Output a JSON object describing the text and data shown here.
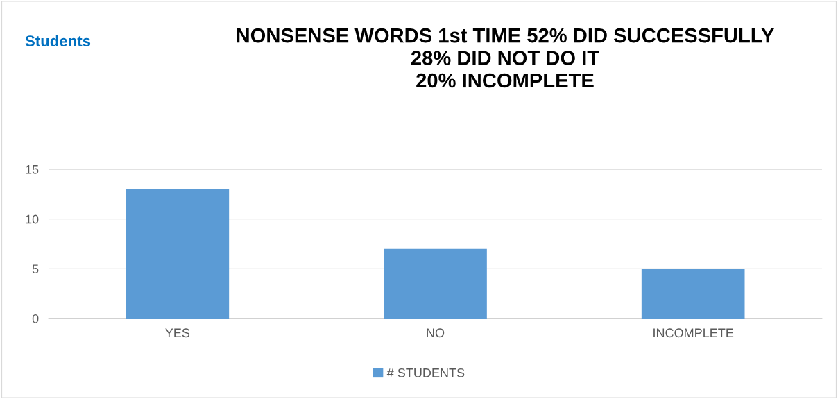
{
  "chart_data": {
    "type": "bar",
    "title": "NONSENSE WORDS 1st TIME 52% DID SUCCESSFULLY\n28% DID NOT DO IT\n20% INCOMPLETE",
    "annotations": [
      "Students"
    ],
    "categories": [
      "YES",
      "NO",
      "INCOMPLETE"
    ],
    "series": [
      {
        "name": "# STUDENTS",
        "color": "#5b9bd5",
        "values": [
          13,
          7,
          5
        ]
      }
    ],
    "ylim": [
      0,
      15
    ],
    "yticks": [
      0,
      5,
      10,
      15
    ],
    "grid": "y",
    "legend": "bottom"
  }
}
